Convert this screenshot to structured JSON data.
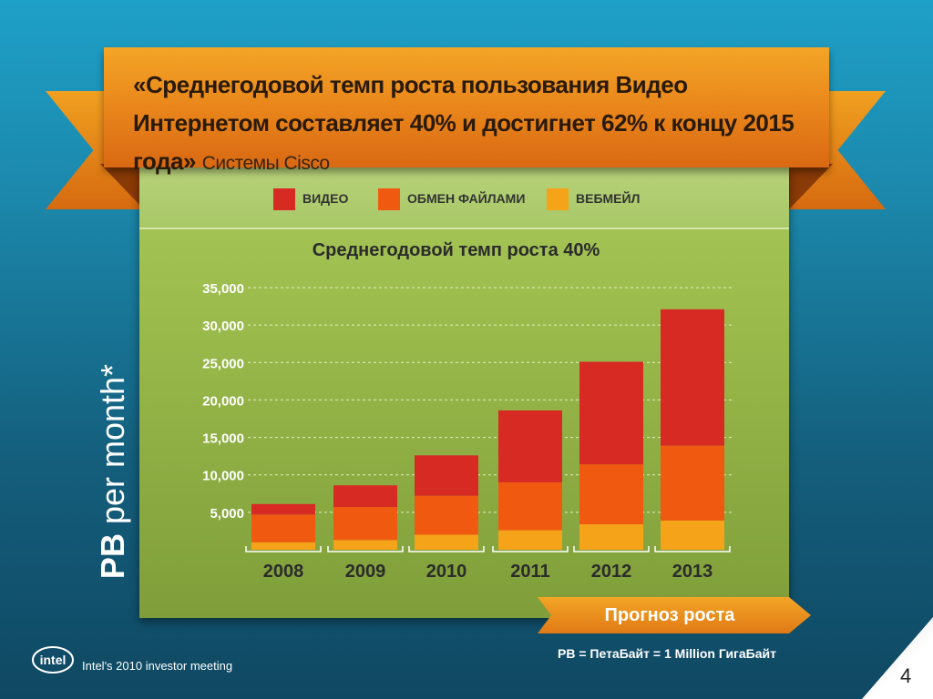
{
  "headline": {
    "quote": "«Среднегодовой темп роста пользования Видео Интернетом составляет 40% и достигнет 62% к концу 2015 года»",
    "source": "Системы Cisco"
  },
  "legend": [
    {
      "label": "ВИДЕО",
      "color": "#d72a23"
    },
    {
      "label": "ОБМЕН ФАЙЛАМИ",
      "color": "#f05a10"
    },
    {
      "label": "ВЕБМЕЙЛ",
      "color": "#f5a41a"
    }
  ],
  "ylabel": {
    "bold": "PB",
    "rest": " per month*"
  },
  "forecast_label": "Прогноз роста",
  "footnote": "PB = ПетаБайт = 1 Million ГигаБайт",
  "footer": {
    "company": "intel",
    "event": "Intel's 2010 investor meeting"
  },
  "page_number": "4",
  "chart_data": {
    "type": "bar",
    "stacked": true,
    "title": "Среднегодовой темп роста 40%",
    "categories": [
      "2008",
      "2009",
      "2010",
      "2011",
      "2012",
      "2013"
    ],
    "series": [
      {
        "name": "ВЕБМЕЙЛ",
        "color": "#f5a41a",
        "values": [
          1000,
          1300,
          2000,
          2600,
          3400,
          3900
        ]
      },
      {
        "name": "ОБМЕН ФАЙЛАМИ",
        "color": "#f05a10",
        "values": [
          3700,
          4400,
          5200,
          6400,
          8000,
          10000
        ]
      },
      {
        "name": "ВИДЕО",
        "color": "#d72a23",
        "values": [
          1400,
          2900,
          5400,
          9600,
          13700,
          18200
        ]
      }
    ],
    "yticks": [
      "5,000",
      "10,000",
      "15,000",
      "20,000",
      "25,000",
      "30,000",
      "35,000"
    ],
    "ylim": [
      0,
      35000
    ],
    "grid": true
  }
}
